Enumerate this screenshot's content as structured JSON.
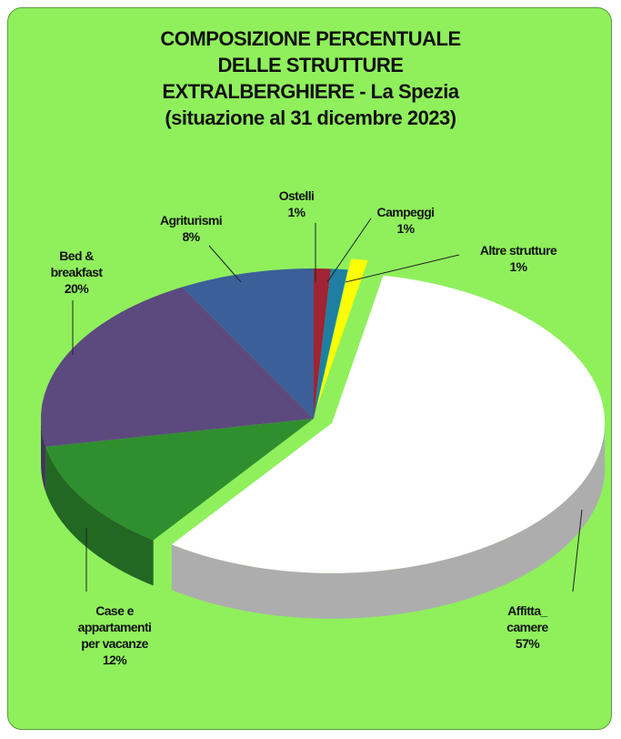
{
  "chart_data": {
    "type": "pie",
    "title": "COMPOSIZIONE PERCENTUALE\nDELLE STRUTTURE\nEXTRALBERGHIERE - La Spezia\n(situazione al 31 dicembre 2023)",
    "categories": [
      "Ostelli",
      "Campeggi",
      "Altre  strutture",
      "Affitta_\ncamere",
      "Case e\nappartamenti\nper vacanze",
      "Bed &\nbreakfast",
      "Agriturismi"
    ],
    "values": [
      1,
      1,
      1,
      57,
      12,
      20,
      8
    ],
    "value_labels": [
      "1%",
      "1%",
      "1%",
      "57%",
      "12%",
      "20%",
      "8%"
    ],
    "colors": [
      "#a02433",
      "#1e7fa3",
      "#ffff00",
      "#ffffff",
      "#2f8f2f",
      "#5c4a7e",
      "#3b5f98"
    ],
    "exploded": [
      false,
      false,
      true,
      true,
      false,
      false,
      false
    ]
  }
}
